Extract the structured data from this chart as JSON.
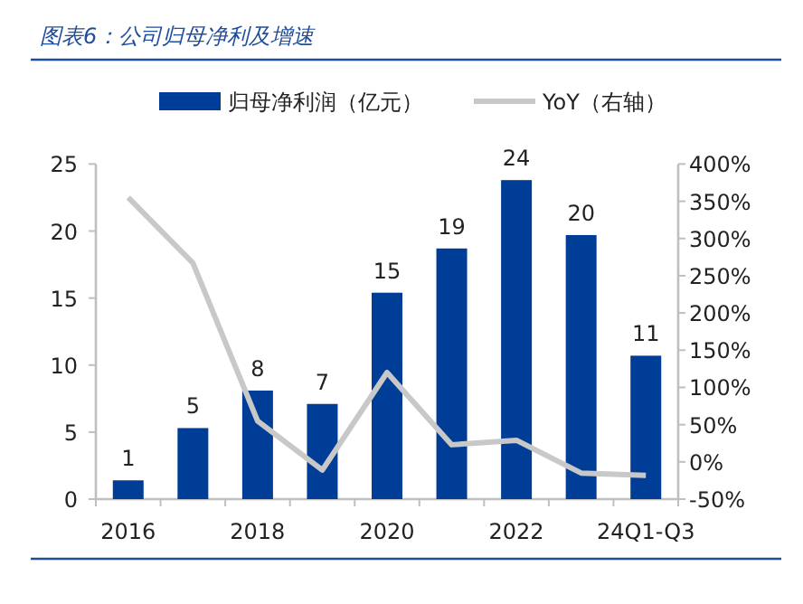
{
  "chart_data": {
    "type": "bar",
    "title": "图表6：公司归母净利及增速",
    "categories": [
      "2016",
      null,
      "2018",
      null,
      "2020",
      null,
      "2022",
      null,
      "24Q1-Q3"
    ],
    "series": [
      {
        "name": "归母净利润（亿元）",
        "color": "#003d96",
        "values": [
          1.4,
          5.3,
          8.1,
          7.1,
          15.4,
          18.7,
          23.8,
          19.7,
          10.7
        ],
        "value_labels": [
          "1",
          "5",
          "8",
          "7",
          "15",
          "19",
          "24",
          "20",
          "11"
        ]
      },
      {
        "name": "YoY（右轴）",
        "type": "line",
        "axis": "y2",
        "color": "#c8c8c8",
        "values": [
          355,
          267,
          55,
          -11,
          120,
          23,
          29,
          -15,
          -18
        ]
      }
    ],
    "ylim": [
      0,
      25
    ],
    "yticks": [
      0,
      5,
      10,
      15,
      20,
      25
    ],
    "y2lim": [
      -50,
      400
    ],
    "y2ticks": [
      {
        "value": -50,
        "label": "-50%"
      },
      {
        "value": 0,
        "label": "0%"
      },
      {
        "value": 50,
        "label": "50%"
      },
      {
        "value": 100,
        "label": "100%"
      },
      {
        "value": 150,
        "label": "150%"
      },
      {
        "value": 200,
        "label": "200%"
      },
      {
        "value": 250,
        "label": "250%"
      },
      {
        "value": 300,
        "label": "300%"
      },
      {
        "value": 350,
        "label": "350%"
      },
      {
        "value": 400,
        "label": "400%"
      }
    ],
    "legend": "top",
    "grid": false
  }
}
